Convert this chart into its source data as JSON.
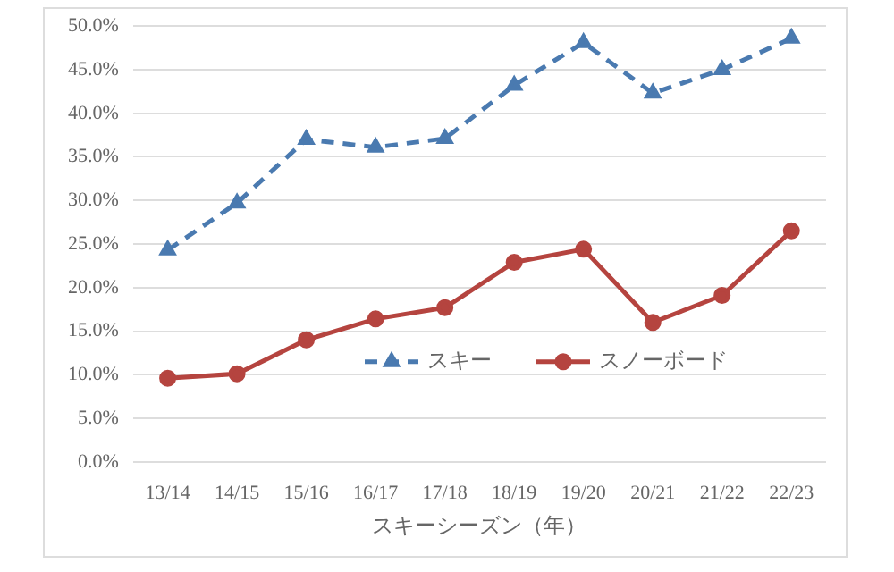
{
  "chart_data": {
    "type": "line",
    "xlabel": "スキーシーズン（年）",
    "categories": [
      "13/14",
      "14/15",
      "15/16",
      "16/17",
      "17/18",
      "18/19",
      "19/20",
      "20/21",
      "21/22",
      "22/23"
    ],
    "series": [
      {
        "name": "スキー",
        "color": "#4a7ab0",
        "marker": "triangle",
        "line_style": "dashed",
        "values": [
          24.3,
          29.7,
          37.0,
          36.1,
          37.1,
          43.2,
          48.1,
          42.3,
          45.0,
          48.6
        ]
      },
      {
        "name": "スノーボード",
        "color": "#b5443f",
        "marker": "circle",
        "line_style": "solid",
        "values": [
          9.6,
          10.1,
          14.0,
          16.4,
          17.7,
          22.9,
          24.4,
          16.0,
          19.1,
          26.5
        ]
      }
    ],
    "ylim": [
      0,
      50
    ],
    "yticks": [
      {
        "value": 0,
        "label": "0.0%"
      },
      {
        "value": 5,
        "label": "5.0%"
      },
      {
        "value": 10,
        "label": "10.0%"
      },
      {
        "value": 15,
        "label": "15.0%"
      },
      {
        "value": 20,
        "label": "20.0%"
      },
      {
        "value": 25,
        "label": "25.0%"
      },
      {
        "value": 30,
        "label": "30.0%"
      },
      {
        "value": 35,
        "label": "35.0%"
      },
      {
        "value": 40,
        "label": "40.0%"
      },
      {
        "value": 45,
        "label": "45.0%"
      },
      {
        "value": 50,
        "label": "50.0%"
      }
    ],
    "grid": "y",
    "legend": "bottom right"
  }
}
